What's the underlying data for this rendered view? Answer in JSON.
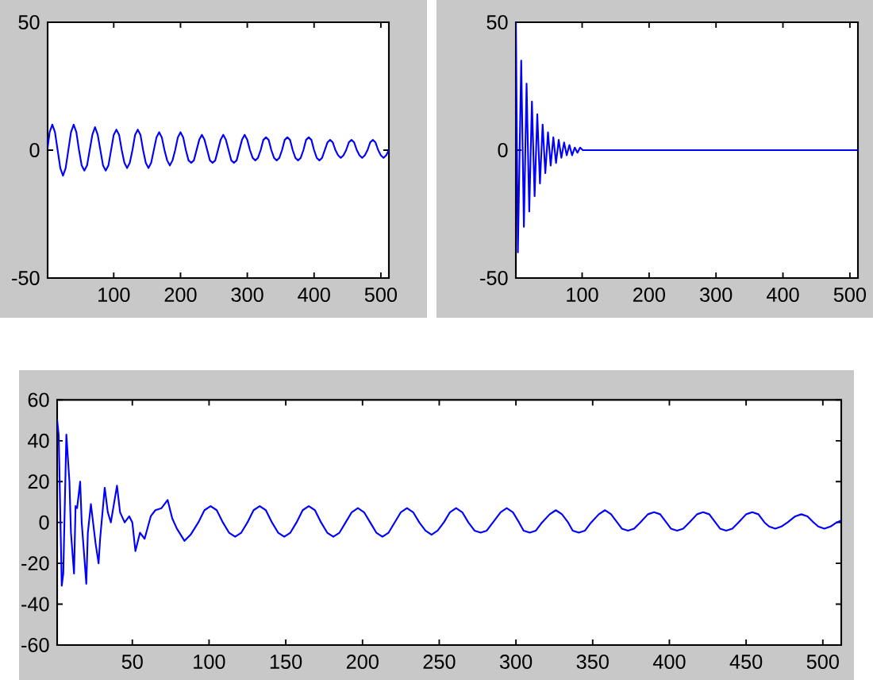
{
  "chart_data": [
    {
      "type": "line",
      "color": "#0000ff",
      "xlim": [
        1,
        512
      ],
      "ylim": [
        -50,
        50
      ],
      "xticks": [
        100,
        200,
        300,
        400,
        500
      ],
      "yticks": [
        -50,
        0,
        50
      ],
      "x": [
        1,
        4,
        8,
        12,
        16,
        20,
        24,
        28,
        32,
        36,
        40,
        44,
        48,
        52,
        56,
        60,
        64,
        68,
        72,
        76,
        80,
        84,
        88,
        92,
        96,
        100,
        104,
        108,
        112,
        116,
        120,
        124,
        128,
        132,
        136,
        140,
        144,
        148,
        152,
        156,
        160,
        164,
        168,
        172,
        176,
        180,
        184,
        188,
        192,
        196,
        200,
        204,
        208,
        212,
        216,
        220,
        224,
        228,
        232,
        236,
        240,
        244,
        248,
        252,
        256,
        260,
        264,
        268,
        272,
        276,
        280,
        284,
        288,
        292,
        296,
        300,
        304,
        308,
        312,
        316,
        320,
        324,
        328,
        332,
        336,
        340,
        344,
        348,
        352,
        356,
        360,
        364,
        368,
        372,
        376,
        380,
        384,
        388,
        392,
        396,
        400,
        404,
        408,
        412,
        416,
        420,
        424,
        428,
        432,
        436,
        440,
        444,
        448,
        452,
        456,
        460,
        464,
        468,
        472,
        476,
        480,
        484,
        488,
        492,
        496,
        500,
        504,
        508,
        512
      ],
      "values": [
        1,
        7,
        10,
        7,
        0,
        -7,
        -10,
        -7,
        0,
        7,
        10,
        7,
        0,
        -6,
        -8,
        -6,
        0,
        6,
        9,
        6,
        0,
        -6,
        -8,
        -6,
        0,
        6,
        8,
        6,
        0,
        -5,
        -7,
        -5,
        0,
        6,
        8,
        6,
        0,
        -5,
        -7,
        -5,
        0,
        5,
        7,
        5,
        0,
        -4,
        -6,
        -4,
        0,
        5,
        7,
        5,
        0,
        -4,
        -5,
        -4,
        0,
        4,
        6,
        4,
        0,
        -4,
        -5,
        -4,
        0,
        4,
        6,
        4,
        0,
        -4,
        -5,
        -4,
        0,
        4,
        6,
        4,
        0,
        -3,
        -4,
        -3,
        0,
        4,
        5,
        4,
        0,
        -3,
        -4,
        -3,
        0,
        4,
        5,
        4,
        0,
        -3,
        -4,
        -3,
        0,
        4,
        5,
        4,
        0,
        -3,
        -4,
        -3,
        0,
        3,
        4,
        3,
        0,
        -2,
        -3,
        -2,
        0,
        3,
        4,
        3,
        0,
        -2,
        -3,
        -2,
        0,
        3,
        4,
        3,
        0,
        -2,
        -3,
        -2,
        0
      ]
    },
    {
      "type": "line",
      "color": "#0000ff",
      "xlim": [
        1,
        512
      ],
      "ylim": [
        -50,
        50
      ],
      "xticks": [
        100,
        200,
        300,
        400,
        500
      ],
      "yticks": [
        -50,
        0,
        50
      ],
      "x": [
        1,
        4,
        9,
        13,
        17,
        21,
        25,
        29,
        33,
        37,
        41,
        45,
        49,
        53,
        57,
        61,
        65,
        69,
        73,
        77,
        81,
        85,
        89,
        93,
        97,
        101,
        110,
        200,
        300,
        400,
        512
      ],
      "values": [
        50,
        -40,
        35,
        -30,
        26,
        -24,
        19,
        -18,
        14,
        -13,
        10,
        -9,
        7,
        -6,
        5,
        -5,
        4,
        -3,
        3,
        -2,
        2,
        -2,
        1,
        -1,
        1,
        0,
        0,
        0,
        0,
        0,
        0
      ]
    },
    {
      "type": "line",
      "color": "#0000ff",
      "xlim": [
        1,
        512
      ],
      "ylim": [
        -60,
        60
      ],
      "xticks": [
        50,
        100,
        150,
        200,
        250,
        300,
        350,
        400,
        450,
        500
      ],
      "yticks": [
        -60,
        -40,
        -20,
        0,
        20,
        40,
        60
      ],
      "x": [
        1,
        2,
        4,
        5,
        7,
        9,
        10,
        12,
        13,
        14,
        16,
        17,
        20,
        21,
        23,
        26,
        28,
        29,
        32,
        34,
        36,
        40,
        42,
        45,
        48,
        50,
        52,
        55,
        58,
        62,
        65,
        69,
        73,
        76,
        79,
        84,
        88,
        93,
        97,
        101,
        105,
        109,
        113,
        117,
        121,
        125,
        129,
        133,
        137,
        141,
        145,
        149,
        153,
        157,
        161,
        165,
        169,
        173,
        177,
        181,
        185,
        189,
        193,
        197,
        201,
        205,
        209,
        213,
        217,
        221,
        225,
        229,
        233,
        237,
        241,
        245,
        249,
        253,
        257,
        261,
        265,
        269,
        273,
        277,
        281,
        285,
        290,
        294,
        298,
        302,
        305,
        309,
        313,
        317,
        322,
        326,
        330,
        334,
        337,
        341,
        345,
        349,
        354,
        358,
        362,
        366,
        369,
        373,
        377,
        381,
        386,
        390,
        394,
        398,
        401,
        405,
        409,
        413,
        418,
        422,
        426,
        430,
        433,
        437,
        441,
        445,
        450,
        454,
        458,
        462,
        465,
        469,
        473,
        477,
        482,
        486,
        490,
        494,
        497,
        501,
        505,
        509,
        512
      ],
      "values": [
        50,
        43,
        -31,
        -25,
        43,
        20,
        -5,
        -25,
        8,
        7,
        20,
        0,
        -30,
        -5,
        9,
        -10,
        -20,
        -8,
        17,
        5,
        0,
        18,
        5,
        0,
        3,
        0,
        -14,
        -5,
        -8,
        3,
        6,
        7,
        11,
        2,
        -3,
        -9,
        -6,
        0,
        6,
        8,
        6,
        0,
        -5,
        -7,
        -5,
        0,
        6,
        8,
        6,
        0,
        -5,
        -7,
        -5,
        0,
        6,
        8,
        6,
        0,
        -5,
        -7,
        -5,
        0,
        5,
        7,
        5,
        0,
        -5,
        -7,
        -5,
        0,
        5,
        7,
        5,
        0,
        -4,
        -6,
        -4,
        0,
        5,
        7,
        5,
        0,
        -4,
        -5,
        -4,
        0,
        5,
        7,
        5,
        0,
        -4,
        -5,
        -4,
        0,
        4,
        6,
        4,
        0,
        -4,
        -5,
        -4,
        0,
        4,
        6,
        4,
        0,
        -3,
        -4,
        -3,
        0,
        4,
        5,
        4,
        0,
        -3,
        -4,
        -3,
        0,
        4,
        5,
        4,
        0,
        -3,
        -4,
        -3,
        0,
        4,
        5,
        4,
        0,
        -2,
        -3,
        -2,
        0,
        3,
        4,
        3,
        0,
        -2,
        -3,
        -2,
        0,
        1
      ]
    }
  ]
}
